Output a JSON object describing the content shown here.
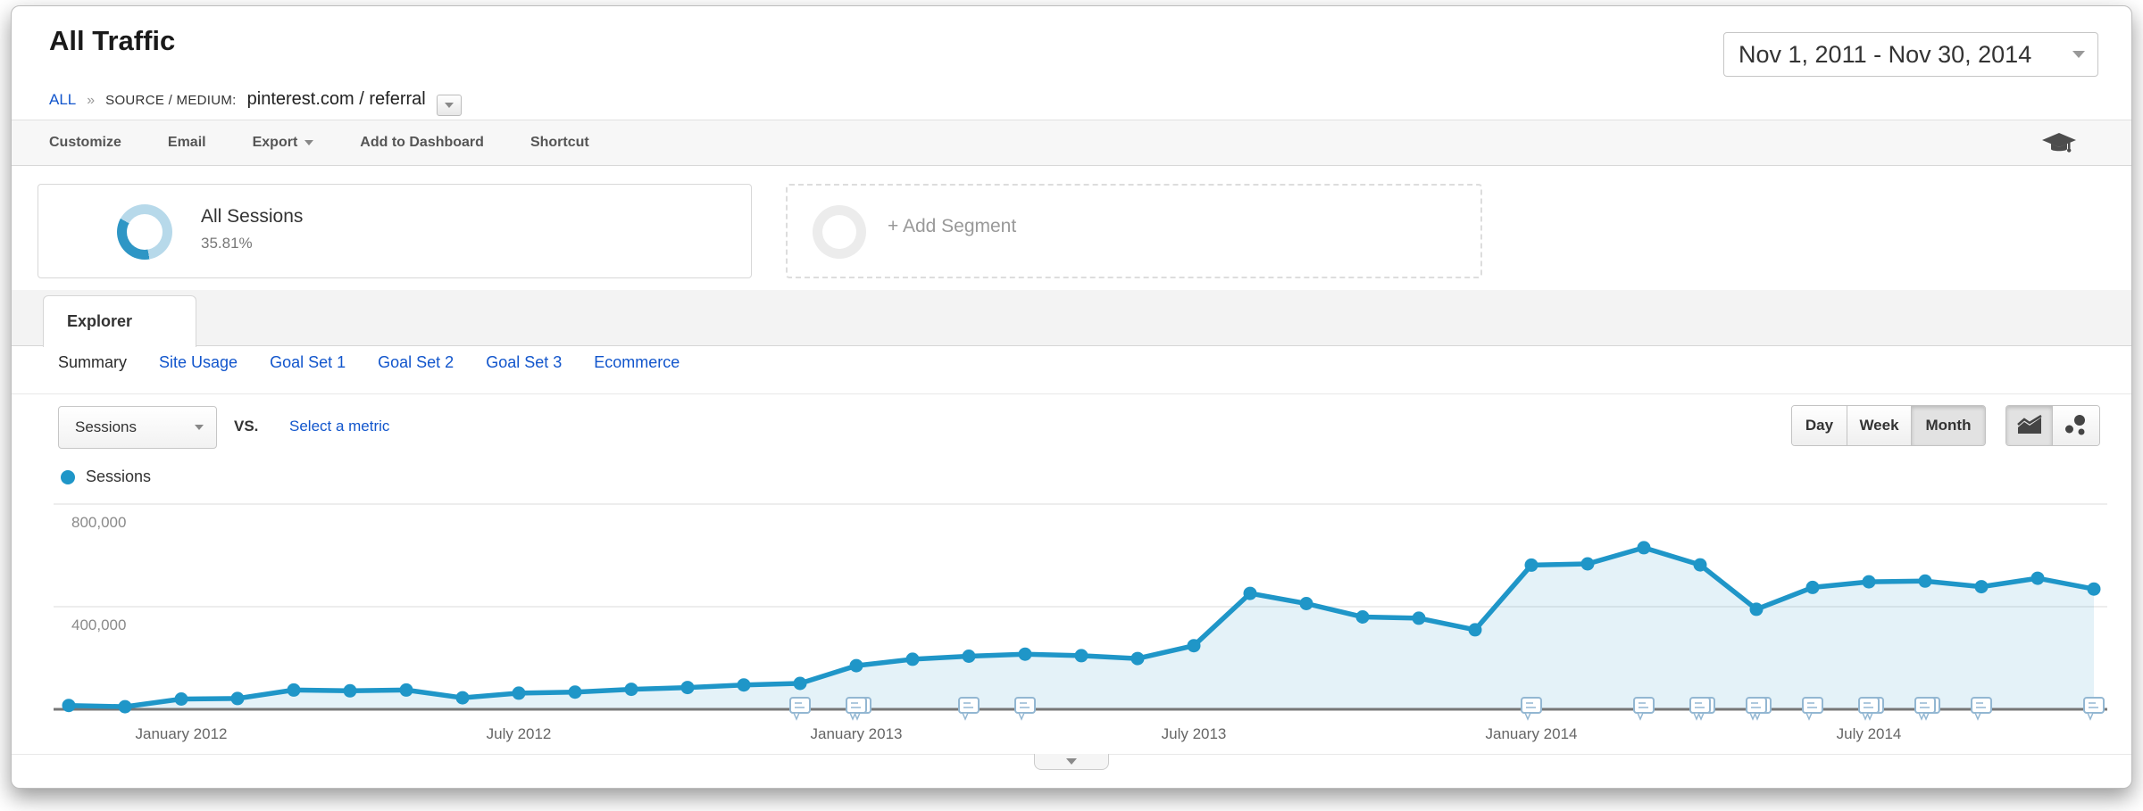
{
  "header": {
    "title": "All Traffic",
    "date_range": "Nov 1, 2011 - Nov 30, 2014"
  },
  "breadcrumb": {
    "root": "ALL",
    "separator": "»",
    "dimension_label": "SOURCE / MEDIUM:",
    "dimension_value": "pinterest.com / referral"
  },
  "toolbar": {
    "items": [
      "Customize",
      "Email",
      "Export",
      "Add to Dashboard",
      "Shortcut"
    ]
  },
  "segments": {
    "all_sessions": {
      "label": "All Sessions",
      "percent": "35.81%"
    },
    "add_segment_label": "+ Add Segment"
  },
  "tabs": {
    "explorer_label": "Explorer",
    "subtabs": [
      "Summary",
      "Site Usage",
      "Goal Set 1",
      "Goal Set 2",
      "Goal Set 3",
      "Ecommerce"
    ],
    "active_subtab": "Summary"
  },
  "controls": {
    "metric_selector": "Sessions",
    "vs_label": "VS.",
    "select_metric_label": "Select a metric",
    "granularity": [
      "Day",
      "Week",
      "Month"
    ],
    "active_granularity": "Month"
  },
  "colors": {
    "series_blue": "#1f96c8",
    "area_fill": "rgba(31,150,200,0.12)",
    "link_blue": "#1155cc",
    "donut_dark": "#2e96c5",
    "donut_light": "#b7d9ea"
  },
  "chart_data": {
    "type": "line",
    "title": "Sessions by month",
    "x": [
      "Nov 2011",
      "Dec 2011",
      "Jan 2012",
      "Feb 2012",
      "Mar 2012",
      "Apr 2012",
      "May 2012",
      "Jun 2012",
      "Jul 2012",
      "Aug 2012",
      "Sep 2012",
      "Oct 2012",
      "Nov 2012",
      "Dec 2012",
      "Jan 2013",
      "Feb 2013",
      "Mar 2013",
      "Apr 2013",
      "May 2013",
      "Jun 2013",
      "Jul 2013",
      "Aug 2013",
      "Sep 2013",
      "Oct 2013",
      "Nov 2013",
      "Dec 2013",
      "Jan 2014",
      "Feb 2014",
      "Mar 2014",
      "Apr 2014",
      "May 2014",
      "Jun 2014",
      "Jul 2014",
      "Aug 2014",
      "Sep 2014",
      "Oct 2014",
      "Nov 2014"
    ],
    "series": [
      {
        "name": "Sessions",
        "color": "#1f96c8",
        "values": [
          15000,
          10000,
          40000,
          42000,
          75000,
          72000,
          75000,
          45000,
          63000,
          67000,
          78000,
          85000,
          95000,
          101000,
          170000,
          195000,
          207000,
          215000,
          209000,
          198000,
          248000,
          452000,
          412000,
          360000,
          355000,
          310000,
          562000,
          567000,
          630000,
          563000,
          390000,
          475000,
          497000,
          500000,
          478000,
          511000,
          469000
        ]
      }
    ],
    "ylim": [
      0,
      900000
    ],
    "yticks": [
      {
        "label": "800,000",
        "value": 800000
      },
      {
        "label": "400,000",
        "value": 400000
      }
    ],
    "xticks": [
      {
        "label": "January 2012",
        "index": 2
      },
      {
        "label": "July 2012",
        "index": 8
      },
      {
        "label": "January 2013",
        "index": 14
      },
      {
        "label": "July 2013",
        "index": 20
      },
      {
        "label": "January 2014",
        "index": 26
      },
      {
        "label": "July 2014",
        "index": 32
      }
    ],
    "grid": true,
    "legend_position": "top-left",
    "area_fill": true,
    "annotations": [
      {
        "index": 13,
        "stacked": false
      },
      {
        "index": 14,
        "stacked": true
      },
      {
        "index": 16,
        "stacked": false
      },
      {
        "index": 17,
        "stacked": false
      },
      {
        "index": 26,
        "stacked": false
      },
      {
        "index": 28,
        "stacked": false
      },
      {
        "index": 29,
        "stacked": true
      },
      {
        "index": 30,
        "stacked": true
      },
      {
        "index": 31,
        "stacked": false
      },
      {
        "index": 32,
        "stacked": true
      },
      {
        "index": 33,
        "stacked": true
      },
      {
        "index": 34,
        "stacked": false
      },
      {
        "index": 36,
        "stacked": false
      }
    ]
  }
}
